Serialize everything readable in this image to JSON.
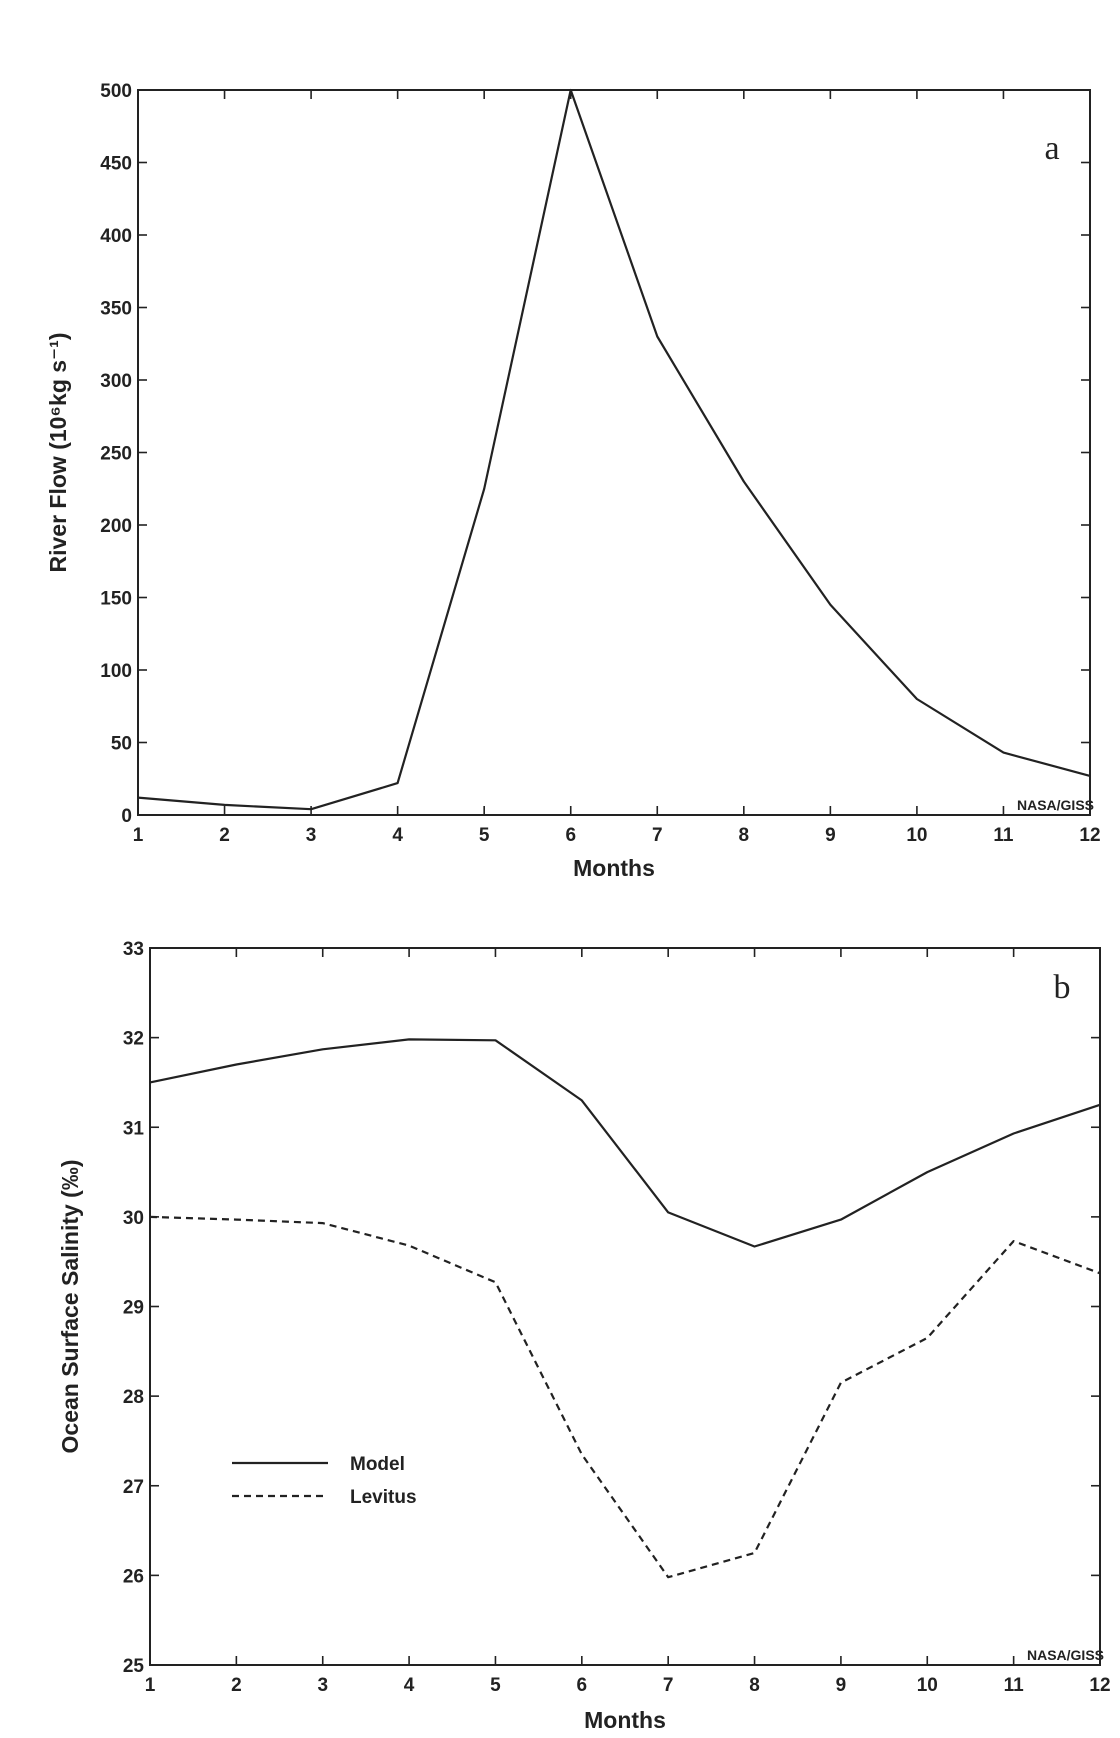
{
  "header_text": "",
  "chart_data": [
    {
      "type": "line",
      "panel_label": "a",
      "credit": "NASA/GISS",
      "xlabel": "Months",
      "ylabel": "River Flow (10⁶kg s⁻¹)",
      "xlim": [
        1,
        12
      ],
      "ylim": [
        0,
        500
      ],
      "x_ticks": [
        1,
        2,
        3,
        4,
        5,
        6,
        7,
        8,
        9,
        10,
        11,
        12
      ],
      "y_ticks": [
        0,
        50,
        100,
        150,
        200,
        250,
        300,
        350,
        400,
        450,
        500
      ],
      "grid": false,
      "x": [
        1,
        2,
        3,
        4,
        5,
        6,
        7,
        8,
        9,
        10,
        11,
        12
      ],
      "series": [
        {
          "name": "",
          "style": "solid",
          "values": [
            12,
            7,
            4,
            22,
            225,
            500,
            330,
            230,
            145,
            80,
            43,
            27
          ]
        }
      ]
    },
    {
      "type": "line",
      "panel_label": "b",
      "credit": "NASA/GISS",
      "xlabel": "Months",
      "ylabel": "Ocean Surface Salinity (‰)",
      "xlim": [
        1,
        12
      ],
      "ylim": [
        25,
        33
      ],
      "x_ticks": [
        1,
        2,
        3,
        4,
        5,
        6,
        7,
        8,
        9,
        10,
        11,
        12
      ],
      "y_ticks": [
        25,
        26,
        27,
        28,
        29,
        30,
        31,
        32,
        33
      ],
      "grid": false,
      "legend_position": "lower-left",
      "x": [
        1,
        2,
        3,
        4,
        5,
        6,
        7,
        8,
        9,
        10,
        11,
        12
      ],
      "series": [
        {
          "name": "Model",
          "style": "solid",
          "values": [
            31.5,
            31.7,
            31.87,
            31.98,
            31.97,
            31.3,
            30.05,
            29.67,
            29.97,
            30.5,
            30.93,
            31.25
          ]
        },
        {
          "name": "Levitus",
          "style": "dashed",
          "values": [
            30.0,
            29.97,
            29.93,
            29.68,
            29.27,
            27.35,
            25.98,
            26.25,
            28.15,
            28.65,
            29.73,
            29.37
          ]
        }
      ]
    }
  ]
}
